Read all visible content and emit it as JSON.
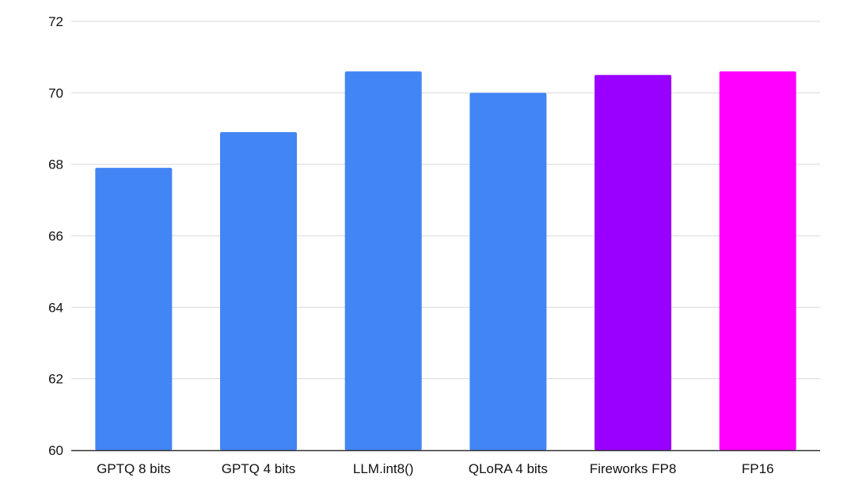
{
  "chart_data": {
    "type": "bar",
    "title": "",
    "xlabel": "",
    "ylabel": "",
    "categories": [
      "GPTQ 8 bits",
      "GPTQ 4 bits",
      "LLM.int8()",
      "QLoRA 4 bits",
      "Fireworks FP8",
      "FP16"
    ],
    "values": [
      67.9,
      68.9,
      70.6,
      70.0,
      70.5,
      70.6
    ],
    "bar_colors": [
      "#4285f4",
      "#4285f4",
      "#4285f4",
      "#4285f4",
      "#9900ff",
      "#ff00ff"
    ],
    "ylim": [
      60,
      72
    ],
    "yticks": [
      "60",
      "62",
      "64",
      "66",
      "68",
      "70",
      "72"
    ],
    "grid": true,
    "legend": "none"
  },
  "colors": {
    "grid": "#d9d9d9",
    "axis": "#333333",
    "text": "#111111"
  }
}
